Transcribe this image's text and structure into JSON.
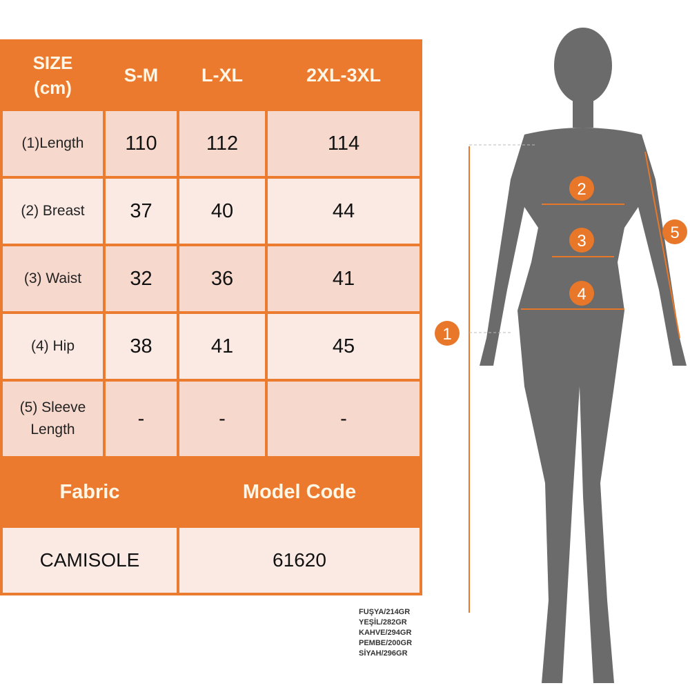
{
  "header": {
    "size_label": "SIZE",
    "unit_label": "(cm)",
    "sizes": [
      "S-M",
      "L-XL",
      "2XL-3XL"
    ]
  },
  "rows": [
    {
      "label": "(1)Length",
      "values": [
        "110",
        "112",
        "114"
      ]
    },
    {
      "label": "(2) Breast",
      "values": [
        "37",
        "40",
        "44"
      ]
    },
    {
      "label": "(3) Waist",
      "values": [
        "32",
        "36",
        "41"
      ]
    },
    {
      "label": "(4) Hip",
      "values": [
        "38",
        "41",
        "45"
      ]
    },
    {
      "label_line1": "(5) Sleeve",
      "label_line2": "Length",
      "values": [
        "-",
        "-",
        "-"
      ]
    }
  ],
  "footer": {
    "fabric_label": "Fabric",
    "model_code_label": "Model Code",
    "fabric": "CAMISOLE",
    "model_code": "61620"
  },
  "weights": [
    "FUŞYA/214GR",
    "YEŞİL/282GR",
    "KAHVE/294GR",
    "PEMBE/200GR",
    "SİYAH/296GR"
  ],
  "markers": [
    "1",
    "2",
    "3",
    "4",
    "5"
  ],
  "colors": {
    "accent": "#ec7a2e",
    "row_dark": "#f7d8cc",
    "row_light": "#fbeae4",
    "silhouette": "#6b6b6b"
  }
}
